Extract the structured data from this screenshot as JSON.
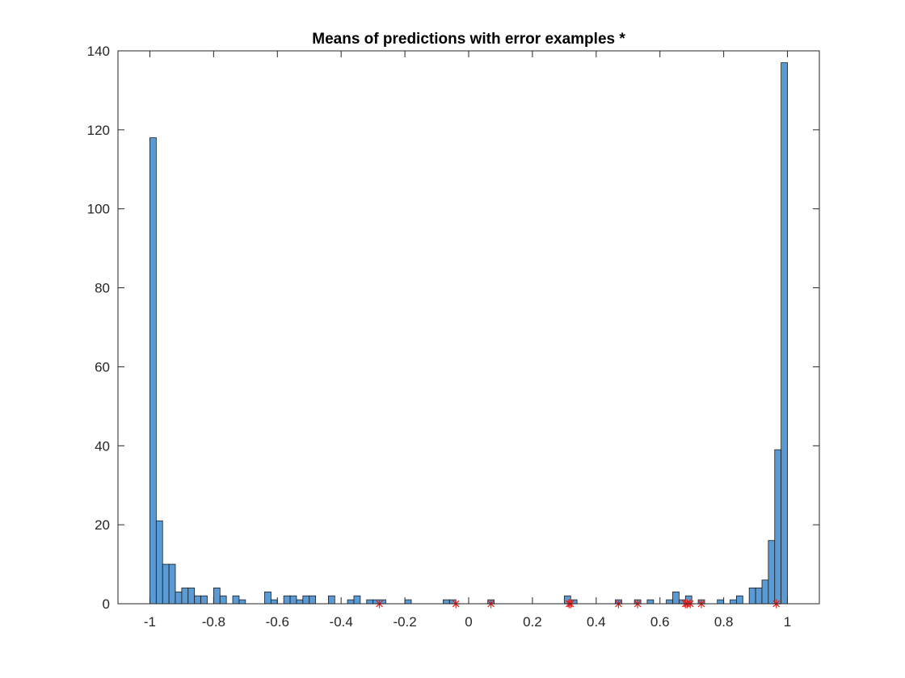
{
  "chart_data": {
    "type": "bar",
    "title": "Means of predictions with error examples *",
    "xlabel": "",
    "ylabel": "",
    "xlim": [
      -1.1,
      1.1
    ],
    "ylim": [
      0,
      140
    ],
    "bin_width": 0.02,
    "bar_color": "#5b9bd5",
    "bar_edge_color": "#1a1a1a",
    "marker_color": "#e0201b",
    "grid": false,
    "x_ticks": [
      "-1",
      "-0.8",
      "-0.6",
      "-0.4",
      "-0.2",
      "0",
      "0.2",
      "0.4",
      "0.6",
      "0.8",
      "1"
    ],
    "y_ticks": [
      "0",
      "20",
      "40",
      "60",
      "80",
      "100",
      "120",
      "140"
    ],
    "bins": [
      {
        "x": -0.99,
        "count": 118
      },
      {
        "x": -0.97,
        "count": 21
      },
      {
        "x": -0.95,
        "count": 10
      },
      {
        "x": -0.93,
        "count": 10
      },
      {
        "x": -0.91,
        "count": 3
      },
      {
        "x": -0.89,
        "count": 4
      },
      {
        "x": -0.87,
        "count": 4
      },
      {
        "x": -0.85,
        "count": 2
      },
      {
        "x": -0.83,
        "count": 2
      },
      {
        "x": -0.79,
        "count": 4
      },
      {
        "x": -0.77,
        "count": 2
      },
      {
        "x": -0.73,
        "count": 2
      },
      {
        "x": -0.71,
        "count": 1
      },
      {
        "x": -0.63,
        "count": 3
      },
      {
        "x": -0.61,
        "count": 1
      },
      {
        "x": -0.57,
        "count": 2
      },
      {
        "x": -0.55,
        "count": 2
      },
      {
        "x": -0.53,
        "count": 1
      },
      {
        "x": -0.51,
        "count": 2
      },
      {
        "x": -0.49,
        "count": 2
      },
      {
        "x": -0.43,
        "count": 2
      },
      {
        "x": -0.37,
        "count": 1
      },
      {
        "x": -0.35,
        "count": 2
      },
      {
        "x": -0.31,
        "count": 1
      },
      {
        "x": -0.29,
        "count": 1
      },
      {
        "x": -0.27,
        "count": 1
      },
      {
        "x": -0.19,
        "count": 1
      },
      {
        "x": -0.07,
        "count": 1
      },
      {
        "x": -0.05,
        "count": 1
      },
      {
        "x": 0.07,
        "count": 1
      },
      {
        "x": 0.31,
        "count": 2
      },
      {
        "x": 0.33,
        "count": 1
      },
      {
        "x": 0.47,
        "count": 1
      },
      {
        "x": 0.53,
        "count": 1
      },
      {
        "x": 0.57,
        "count": 1
      },
      {
        "x": 0.63,
        "count": 1
      },
      {
        "x": 0.65,
        "count": 3
      },
      {
        "x": 0.67,
        "count": 1
      },
      {
        "x": 0.69,
        "count": 2
      },
      {
        "x": 0.73,
        "count": 1
      },
      {
        "x": 0.79,
        "count": 1
      },
      {
        "x": 0.83,
        "count": 1
      },
      {
        "x": 0.85,
        "count": 2
      },
      {
        "x": 0.89,
        "count": 4
      },
      {
        "x": 0.91,
        "count": 4
      },
      {
        "x": 0.93,
        "count": 6
      },
      {
        "x": 0.95,
        "count": 16
      },
      {
        "x": 0.97,
        "count": 39
      },
      {
        "x": 0.99,
        "count": 137
      }
    ],
    "error_examples": [
      -0.28,
      -0.04,
      0.07,
      0.315,
      0.32,
      0.47,
      0.53,
      0.68,
      0.685,
      0.695,
      0.73,
      0.965
    ]
  }
}
